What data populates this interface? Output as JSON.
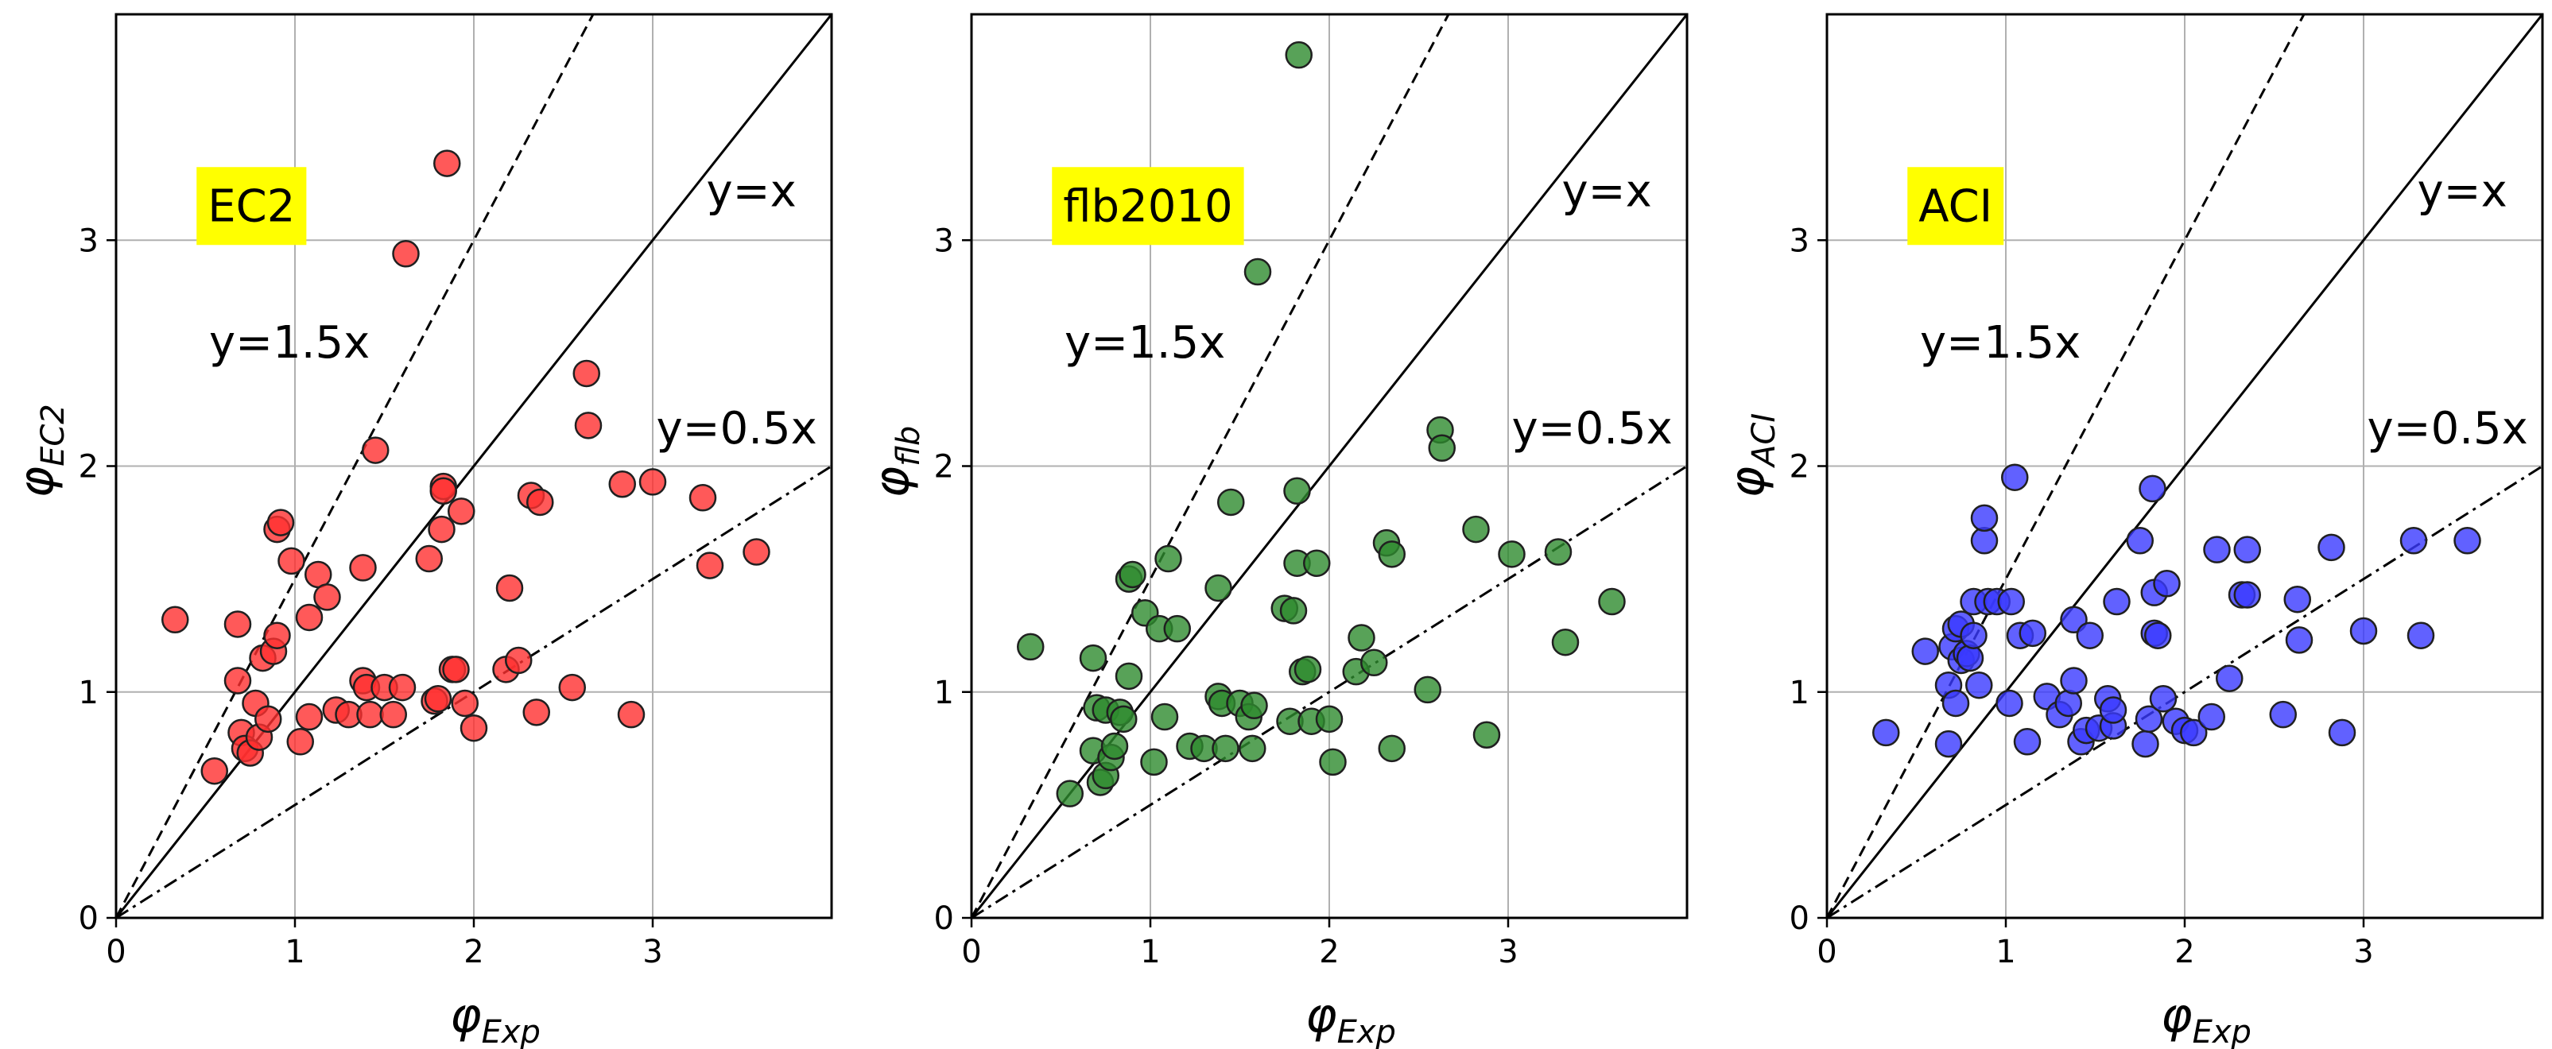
{
  "chart_data": [
    {
      "type": "scatter",
      "method_label": "EC2",
      "xlabel": {
        "main": "φ",
        "sub": "Exp"
      },
      "ylabel": {
        "main": "φ",
        "sub": "EC2"
      },
      "xlim": [
        0,
        4
      ],
      "ylim": [
        0,
        4
      ],
      "xticks": [
        "0",
        "1",
        "2",
        "3"
      ],
      "yticks": [
        "0",
        "1",
        "2",
        "3"
      ],
      "grid": true,
      "marker_color": "#ff0000",
      "reference_lines": [
        {
          "label": "y=1.5x",
          "slope": 1.5,
          "style": "dashed"
        },
        {
          "label": "y=x",
          "slope": 1.0,
          "style": "solid"
        },
        {
          "label": "y=0.5x",
          "slope": 0.5,
          "style": "dashdot"
        }
      ],
      "points": [
        [
          0.33,
          1.32
        ],
        [
          0.55,
          0.65
        ],
        [
          0.68,
          1.3
        ],
        [
          0.68,
          1.05
        ],
        [
          0.7,
          0.82
        ],
        [
          0.72,
          0.75
        ],
        [
          0.75,
          0.73
        ],
        [
          0.78,
          0.95
        ],
        [
          0.8,
          0.8
        ],
        [
          0.82,
          1.15
        ],
        [
          0.85,
          0.88
        ],
        [
          0.88,
          1.18
        ],
        [
          0.9,
          1.25
        ],
        [
          0.9,
          1.72
        ],
        [
          0.92,
          1.75
        ],
        [
          0.98,
          1.58
        ],
        [
          1.03,
          0.78
        ],
        [
          1.08,
          0.89
        ],
        [
          1.08,
          1.33
        ],
        [
          1.13,
          1.52
        ],
        [
          1.18,
          1.42
        ],
        [
          1.23,
          0.92
        ],
        [
          1.3,
          0.9
        ],
        [
          1.38,
          1.55
        ],
        [
          1.38,
          1.05
        ],
        [
          1.4,
          1.02
        ],
        [
          1.42,
          0.9
        ],
        [
          1.45,
          2.07
        ],
        [
          1.5,
          1.02
        ],
        [
          1.55,
          0.9
        ],
        [
          1.6,
          1.02
        ],
        [
          1.62,
          2.94
        ],
        [
          1.75,
          1.59
        ],
        [
          1.78,
          0.96
        ],
        [
          1.8,
          0.97
        ],
        [
          1.82,
          1.72
        ],
        [
          1.83,
          1.91
        ],
        [
          1.83,
          1.89
        ],
        [
          1.85,
          3.34
        ],
        [
          1.88,
          1.1
        ],
        [
          1.9,
          1.1
        ],
        [
          1.93,
          1.8
        ],
        [
          1.95,
          0.95
        ],
        [
          2.0,
          0.84
        ],
        [
          2.18,
          1.1
        ],
        [
          2.2,
          1.46
        ],
        [
          2.25,
          1.14
        ],
        [
          2.32,
          1.87
        ],
        [
          2.35,
          0.91
        ],
        [
          2.37,
          1.84
        ],
        [
          2.55,
          1.02
        ],
        [
          2.63,
          2.41
        ],
        [
          2.64,
          2.18
        ],
        [
          2.83,
          1.92
        ],
        [
          2.88,
          0.9
        ],
        [
          3.0,
          1.93
        ],
        [
          3.28,
          1.86
        ],
        [
          3.32,
          1.56
        ],
        [
          3.58,
          1.62
        ]
      ]
    },
    {
      "type": "scatter",
      "method_label": "flb2010",
      "xlabel": {
        "main": "φ",
        "sub": "Exp"
      },
      "ylabel": {
        "main": "φ",
        "sub": "flb"
      },
      "xlim": [
        0,
        4
      ],
      "ylim": [
        0,
        4
      ],
      "xticks": [
        "0",
        "1",
        "2",
        "3"
      ],
      "yticks": [
        "0",
        "1",
        "2",
        "3"
      ],
      "grid": true,
      "marker_color": "#008000",
      "reference_lines": [
        {
          "label": "y=1.5x",
          "slope": 1.5,
          "style": "dashed"
        },
        {
          "label": "y=x",
          "slope": 1.0,
          "style": "solid"
        },
        {
          "label": "y=0.5x",
          "slope": 0.5,
          "style": "dashdot"
        }
      ],
      "points": [
        [
          0.33,
          1.2
        ],
        [
          0.55,
          0.55
        ],
        [
          0.68,
          0.74
        ],
        [
          0.68,
          1.15
        ],
        [
          0.7,
          0.93
        ],
        [
          0.72,
          0.6
        ],
        [
          0.75,
          0.63
        ],
        [
          0.75,
          0.92
        ],
        [
          0.78,
          0.71
        ],
        [
          0.8,
          0.76
        ],
        [
          0.83,
          0.91
        ],
        [
          0.85,
          0.88
        ],
        [
          0.88,
          1.07
        ],
        [
          0.88,
          1.5
        ],
        [
          0.9,
          1.52
        ],
        [
          0.97,
          1.35
        ],
        [
          1.02,
          0.69
        ],
        [
          1.05,
          1.28
        ],
        [
          1.08,
          0.89
        ],
        [
          1.1,
          1.59
        ],
        [
          1.15,
          1.28
        ],
        [
          1.22,
          0.76
        ],
        [
          1.3,
          0.75
        ],
        [
          1.38,
          1.46
        ],
        [
          1.38,
          0.98
        ],
        [
          1.4,
          0.95
        ],
        [
          1.42,
          0.75
        ],
        [
          1.45,
          1.84
        ],
        [
          1.5,
          0.95
        ],
        [
          1.55,
          0.89
        ],
        [
          1.57,
          0.75
        ],
        [
          1.58,
          0.94
        ],
        [
          1.6,
          2.86
        ],
        [
          1.75,
          1.37
        ],
        [
          1.78,
          0.87
        ],
        [
          1.8,
          1.36
        ],
        [
          1.82,
          1.89
        ],
        [
          1.82,
          1.57
        ],
        [
          1.83,
          3.82
        ],
        [
          1.85,
          1.09
        ],
        [
          1.88,
          1.1
        ],
        [
          1.9,
          0.87
        ],
        [
          1.93,
          1.57
        ],
        [
          2.0,
          0.88
        ],
        [
          2.02,
          0.69
        ],
        [
          2.15,
          1.09
        ],
        [
          2.18,
          1.24
        ],
        [
          2.25,
          1.13
        ],
        [
          2.32,
          1.66
        ],
        [
          2.35,
          0.75
        ],
        [
          2.35,
          1.61
        ],
        [
          2.55,
          1.01
        ],
        [
          2.62,
          2.16
        ],
        [
          2.63,
          2.08
        ],
        [
          2.82,
          1.72
        ],
        [
          2.88,
          0.81
        ],
        [
          3.02,
          1.61
        ],
        [
          3.28,
          1.62
        ],
        [
          3.32,
          1.22
        ],
        [
          3.58,
          1.4
        ]
      ]
    },
    {
      "type": "scatter",
      "method_label": "ACI",
      "xlabel": {
        "main": "φ",
        "sub": "Exp"
      },
      "ylabel": {
        "main": "φ",
        "sub": "ACI"
      },
      "xlim": [
        0,
        4
      ],
      "ylim": [
        0,
        4
      ],
      "xticks": [
        "0",
        "1",
        "2",
        "3"
      ],
      "yticks": [
        "0",
        "1",
        "2",
        "3"
      ],
      "grid": true,
      "marker_color": "#0000ff",
      "reference_lines": [
        {
          "label": "y=1.5x",
          "slope": 1.5,
          "style": "dashed"
        },
        {
          "label": "y=x",
          "slope": 1.0,
          "style": "solid"
        },
        {
          "label": "y=0.5x",
          "slope": 0.5,
          "style": "dashdot"
        }
      ],
      "points": [
        [
          0.33,
          0.82
        ],
        [
          0.55,
          1.18
        ],
        [
          0.68,
          0.77
        ],
        [
          0.68,
          1.03
        ],
        [
          0.7,
          1.2
        ],
        [
          0.72,
          0.95
        ],
        [
          0.72,
          1.28
        ],
        [
          0.75,
          1.14
        ],
        [
          0.75,
          1.3
        ],
        [
          0.78,
          1.17
        ],
        [
          0.8,
          1.15
        ],
        [
          0.82,
          1.25
        ],
        [
          0.82,
          1.4
        ],
        [
          0.85,
          1.03
        ],
        [
          0.88,
          1.67
        ],
        [
          0.88,
          1.77
        ],
        [
          0.9,
          1.4
        ],
        [
          0.95,
          1.4
        ],
        [
          1.02,
          0.95
        ],
        [
          1.03,
          1.4
        ],
        [
          1.05,
          1.95
        ],
        [
          1.08,
          1.25
        ],
        [
          1.12,
          0.78
        ],
        [
          1.15,
          1.26
        ],
        [
          1.23,
          0.98
        ],
        [
          1.3,
          0.9
        ],
        [
          1.35,
          0.95
        ],
        [
          1.38,
          1.32
        ],
        [
          1.38,
          1.05
        ],
        [
          1.42,
          0.78
        ],
        [
          1.45,
          0.83
        ],
        [
          1.47,
          1.25
        ],
        [
          1.52,
          0.84
        ],
        [
          1.57,
          0.97
        ],
        [
          1.6,
          0.85
        ],
        [
          1.6,
          0.92
        ],
        [
          1.62,
          1.4
        ],
        [
          1.75,
          1.67
        ],
        [
          1.78,
          0.77
        ],
        [
          1.8,
          0.88
        ],
        [
          1.82,
          1.9
        ],
        [
          1.83,
          1.44
        ],
        [
          1.83,
          1.26
        ],
        [
          1.85,
          1.25
        ],
        [
          1.88,
          0.97
        ],
        [
          1.9,
          1.48
        ],
        [
          1.95,
          0.87
        ],
        [
          2.0,
          0.83
        ],
        [
          2.05,
          0.82
        ],
        [
          2.15,
          0.89
        ],
        [
          2.18,
          1.63
        ],
        [
          2.25,
          1.06
        ],
        [
          2.32,
          1.43
        ],
        [
          2.35,
          1.43
        ],
        [
          2.35,
          1.63
        ],
        [
          2.55,
          0.9
        ],
        [
          2.63,
          1.41
        ],
        [
          2.64,
          1.23
        ],
        [
          2.82,
          1.64
        ],
        [
          2.88,
          0.82
        ],
        [
          3.0,
          1.27
        ],
        [
          3.28,
          1.67
        ],
        [
          3.32,
          1.25
        ],
        [
          3.58,
          1.67
        ]
      ]
    }
  ]
}
